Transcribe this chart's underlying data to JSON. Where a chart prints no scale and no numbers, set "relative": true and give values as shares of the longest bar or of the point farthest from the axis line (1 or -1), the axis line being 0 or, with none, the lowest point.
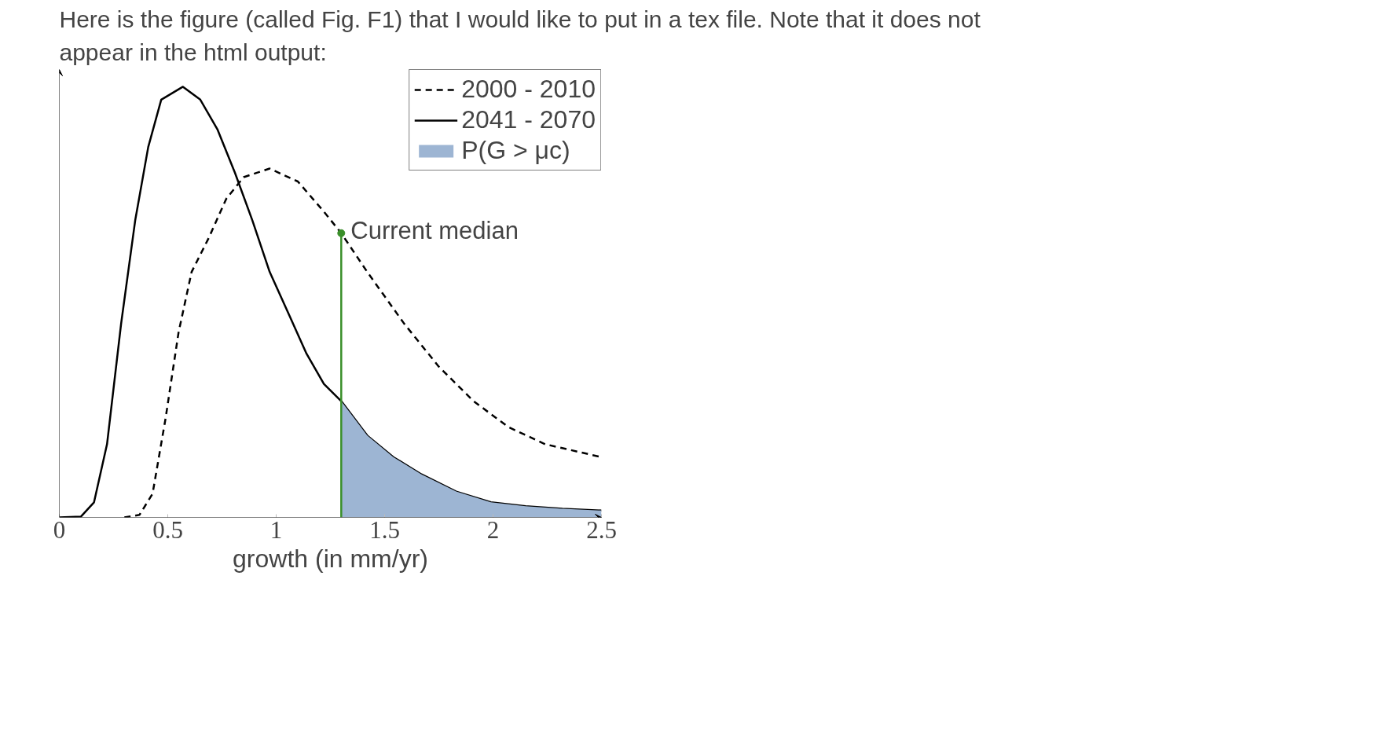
{
  "chart_data": {
    "type": "line",
    "title": "Here is the figure (called Fig. F1) that I would like to put in a tex file. Note that it does not appear in the html output:",
    "xlabel": "growth (in mm/yr)",
    "relative": true,
    "xlim": [
      0,
      2.5
    ],
    "xticks": [
      0,
      0.5,
      1,
      1.5,
      2,
      2.5
    ],
    "legend": "top",
    "grid": false,
    "series": [
      {
        "name": "2000 - 2010",
        "color": "#000000",
        "line_style": "dashed",
        "x": [
          0.3,
          0.37,
          0.43,
          0.49,
          0.55,
          0.61,
          0.69,
          0.77,
          0.85,
          0.97,
          1.1,
          1.22,
          1.3,
          1.42,
          1.59,
          1.75,
          1.91,
          2.07,
          2.24,
          2.5
        ],
        "values": [
          0,
          0.006,
          0.055,
          0.23,
          0.43,
          0.57,
          0.65,
          0.74,
          0.79,
          0.81,
          0.78,
          0.71,
          0.66,
          0.57,
          0.45,
          0.35,
          0.27,
          0.21,
          0.17,
          0.14
        ]
      },
      {
        "name": "2041 - 2070",
        "color": "#000000",
        "line_style": "solid",
        "x": [
          0,
          0.1,
          0.16,
          0.22,
          0.285,
          0.35,
          0.41,
          0.47,
          0.57,
          0.65,
          0.73,
          0.81,
          0.89,
          0.97,
          1.06,
          1.14,
          1.22,
          1.3,
          1.42,
          1.54,
          1.67,
          1.83,
          1.99,
          2.15,
          2.32,
          2.5
        ],
        "values": [
          0,
          0.002,
          0.035,
          0.17,
          0.45,
          0.69,
          0.86,
          0.97,
          1.0,
          0.97,
          0.9,
          0.8,
          0.69,
          0.57,
          0.47,
          0.38,
          0.31,
          0.27,
          0.19,
          0.14,
          0.1,
          0.06,
          0.035,
          0.026,
          0.02,
          0.016
        ]
      },
      {
        "name": "P(G > μc)",
        "type": "area",
        "color": "#9db5d3",
        "x": [
          1.3,
          1.42,
          1.54,
          1.67,
          1.83,
          1.99,
          2.15,
          2.32,
          2.5
        ],
        "values": [
          0.27,
          0.19,
          0.14,
          0.1,
          0.06,
          0.035,
          0.026,
          0.02,
          0.016
        ]
      }
    ],
    "annotations": [
      {
        "text": "Current median",
        "x": 1.3,
        "y": 0.66
      }
    ]
  }
}
